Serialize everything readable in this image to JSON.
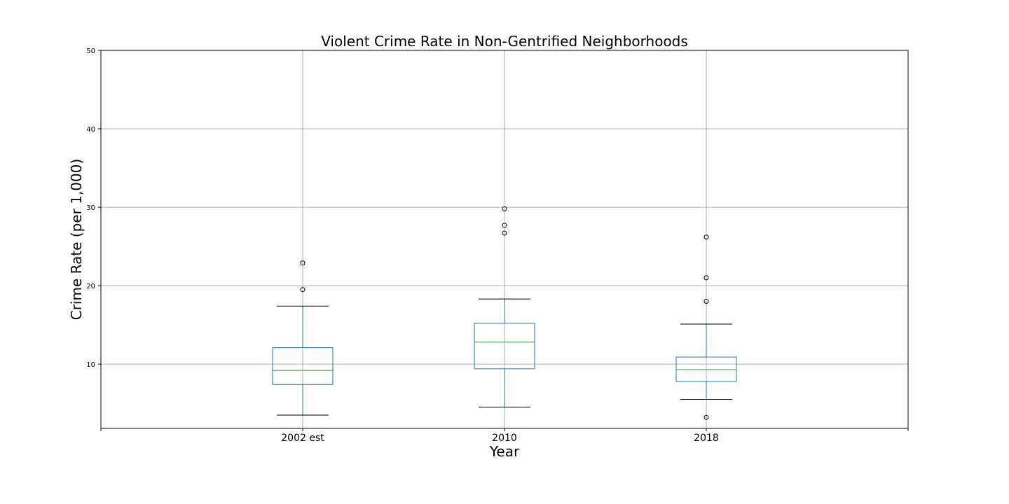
{
  "chart_data": {
    "type": "box",
    "title": "Violent Crime Rate in Non-Gentrified Neighborhoods",
    "xlabel": "Year",
    "ylabel": "Crime Rate (per 1,000)",
    "ylim": [
      1.8,
      50
    ],
    "yticks": [
      10,
      20,
      30,
      40,
      50
    ],
    "grid": true,
    "categories": [
      "2002 est",
      "2010",
      "2018"
    ],
    "boxes": [
      {
        "category": "2002 est",
        "whisker_low": 3.5,
        "q1": 7.4,
        "median": 9.2,
        "q3": 12.1,
        "whisker_high": 17.4,
        "outliers": [
          19.5,
          22.9
        ]
      },
      {
        "category": "2010",
        "whisker_low": 4.5,
        "q1": 9.4,
        "median": 12.8,
        "q3": 15.2,
        "whisker_high": 18.3,
        "outliers": [
          26.7,
          27.7,
          29.8
        ]
      },
      {
        "category": "2018",
        "whisker_low": 5.5,
        "q1": 7.8,
        "median": 9.3,
        "q3": 10.9,
        "whisker_high": 15.1,
        "outliers": [
          3.2,
          18.0,
          21.0,
          26.2
        ]
      }
    ],
    "colors": {
      "box": "#1f77b4",
      "median": "#2ca02c",
      "caps": "#000000",
      "grid": "#b0b0b0"
    }
  }
}
